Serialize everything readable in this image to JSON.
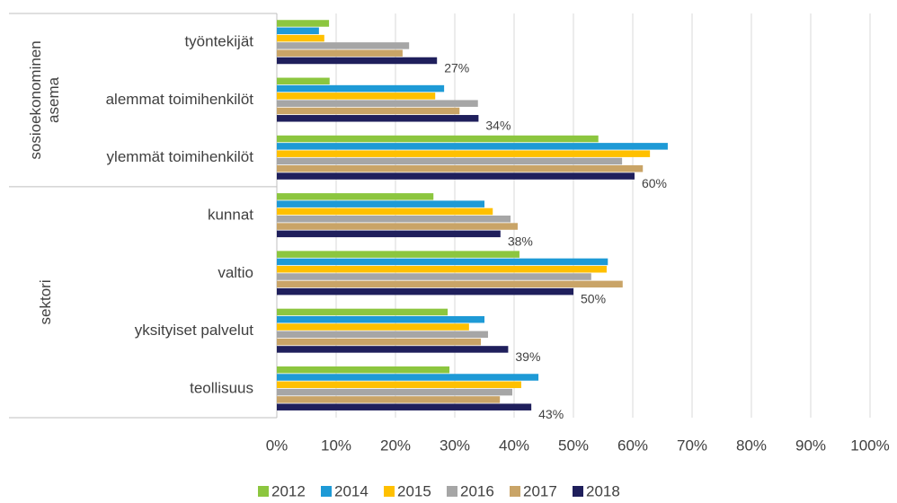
{
  "chart_data": {
    "type": "barh",
    "categories": [
      "työntekijät",
      "alemmat toimihenkilöt",
      "ylemmät toimihenkilöt",
      "kunnat",
      "valtio",
      "yksityiset palvelut",
      "teollisuus"
    ],
    "group_labels": [
      [
        "sosioekonominen",
        "asema"
      ],
      [
        "sektori"
      ]
    ],
    "series": [
      {
        "name": "2012",
        "color": "#8cc63f",
        "values": [
          8.8,
          8.9,
          54.2,
          26.4,
          40.9,
          28.8,
          29.1
        ]
      },
      {
        "name": "2014",
        "color": "#1e9ad6",
        "values": [
          7.1,
          28.2,
          65.9,
          35,
          55.8,
          35,
          44.1
        ]
      },
      {
        "name": "2015",
        "color": "#ffc000",
        "values": [
          8.0,
          26.7,
          62.9,
          36.4,
          55.6,
          32.4,
          41.2
        ]
      },
      {
        "name": "2016",
        "color": "#a6a6a6",
        "values": [
          22.3,
          33.9,
          58.2,
          39.4,
          53,
          35.6,
          39.7
        ]
      },
      {
        "name": "2017",
        "color": "#c9a467",
        "values": [
          21.2,
          30.8,
          61.7,
          40.6,
          58.3,
          34.4,
          37.6
        ]
      },
      {
        "name": "2018",
        "color": "#1f1f5c",
        "values": [
          27,
          34,
          60.3,
          37.7,
          50,
          39,
          42.9
        ],
        "value_labels": [
          "27%",
          "34%",
          "60%",
          "38%",
          "50%",
          "39%",
          "43%"
        ]
      }
    ],
    "xlim": [
      0,
      100
    ],
    "xticks": [
      {
        "value": 0,
        "label": "0%"
      },
      {
        "value": 10,
        "label": "10%"
      },
      {
        "value": 20,
        "label": "20%"
      },
      {
        "value": 30,
        "label": "30%"
      },
      {
        "value": 40,
        "label": "40%"
      },
      {
        "value": 50,
        "label": "50%"
      },
      {
        "value": 60,
        "label": "60%"
      },
      {
        "value": 70,
        "label": "70%"
      },
      {
        "value": 80,
        "label": "80%"
      },
      {
        "value": 90,
        "label": "90%"
      },
      {
        "value": 100,
        "label": "100%"
      }
    ],
    "grid": true,
    "legend": "bottom"
  }
}
